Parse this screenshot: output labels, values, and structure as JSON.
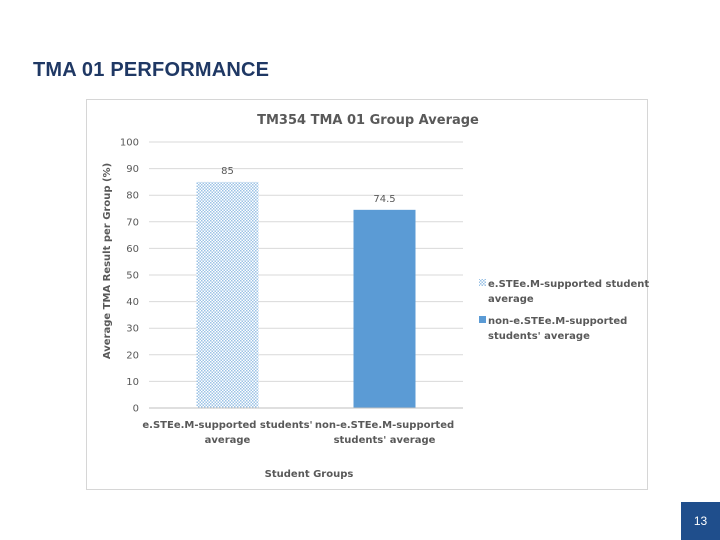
{
  "slide": {
    "title": "TMA 01 PERFORMANCE",
    "page_number": "13"
  },
  "colors": {
    "title": "#1f3864",
    "series_supported": "#9cc3e6",
    "series_non_supported": "#5b9bd5",
    "badge": "#1f4e8c"
  },
  "chart_data": {
    "type": "bar",
    "title": "TM354 TMA 01 Group Average",
    "xlabel": "Student Groups",
    "ylabel": "Average TMA Result per Group (%)",
    "ylim": [
      0,
      100
    ],
    "yticks": [
      0,
      10,
      20,
      30,
      40,
      50,
      60,
      70,
      80,
      90,
      100
    ],
    "grid": true,
    "legend_position": "right",
    "categories": [
      [
        "e.STEe.M-supported students'",
        "average"
      ],
      [
        "non-e.STEe.M-supported",
        "students' average"
      ]
    ],
    "values": [
      85,
      74.5
    ],
    "data_labels": [
      "85",
      "74.5"
    ],
    "legend": [
      {
        "lines": [
          "e.STEe.M-supported students'",
          "average"
        ],
        "pattern": "dots",
        "color": "#9cc3e6"
      },
      {
        "lines": [
          "non-e.STEe.M-supported",
          "students' average"
        ],
        "pattern": "solid",
        "color": "#5b9bd5"
      }
    ]
  }
}
